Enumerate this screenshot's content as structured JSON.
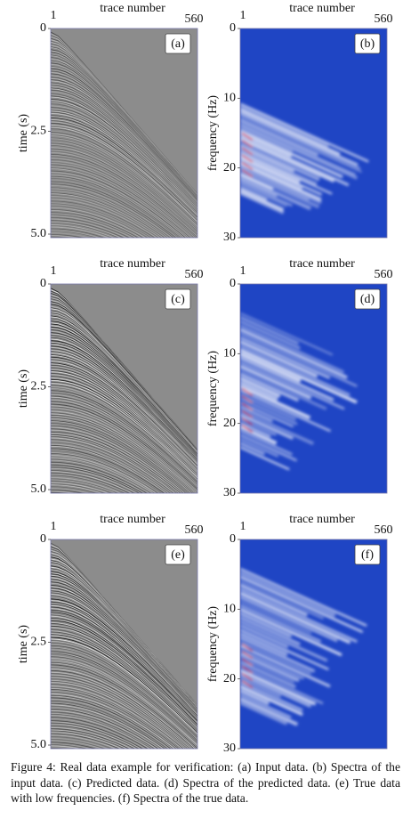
{
  "panels": [
    {
      "label": "(a)",
      "x_axis_label": "trace number",
      "x_ticks": [
        "1",
        "560"
      ],
      "y_axis_label": "time (s)",
      "y_ticks": [
        "0",
        "2.5",
        "5.0"
      ]
    },
    {
      "label": "(b)",
      "x_axis_label": "trace number",
      "x_ticks": [
        "1",
        "560"
      ],
      "y_axis_label": "frequency (Hz)",
      "y_ticks": [
        "0",
        "10",
        "20",
        "30"
      ]
    },
    {
      "label": "(c)",
      "x_axis_label": "trace number",
      "x_ticks": [
        "1",
        "560"
      ],
      "y_axis_label": "time (s)",
      "y_ticks": [
        "0",
        "2.5",
        "5.0"
      ]
    },
    {
      "label": "(d)",
      "x_axis_label": "trace number",
      "x_ticks": [
        "1",
        "560"
      ],
      "y_axis_label": "frequency (Hz)",
      "y_ticks": [
        "0",
        "10",
        "20",
        "30"
      ]
    },
    {
      "label": "(e)",
      "x_axis_label": "trace number",
      "x_ticks": [
        "1",
        "560"
      ],
      "y_axis_label": "time (s)",
      "y_ticks": [
        "0",
        "2.5",
        "5.0"
      ]
    },
    {
      "label": "(f)",
      "x_axis_label": "trace number",
      "x_ticks": [
        "1",
        "560"
      ],
      "y_axis_label": "frequency (Hz)",
      "y_ticks": [
        "0",
        "10",
        "20",
        "30"
      ]
    }
  ],
  "caption": "Figure 4: Real data example for verification: (a) Input data. (b) Spectra of the input data. (c) Predicted data. (d) Spectra of the predicted data. (e) True data with low frequencies. (f) Spectra of the true data."
}
